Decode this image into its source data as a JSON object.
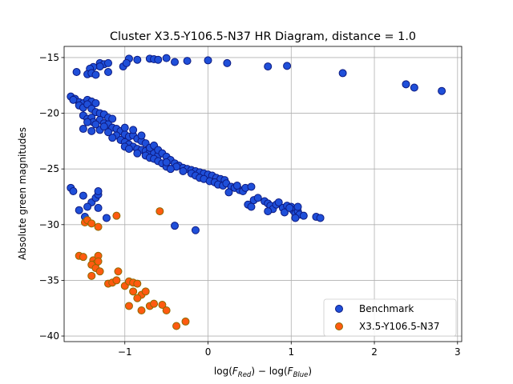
{
  "chart_data": {
    "type": "scatter",
    "title": "Cluster X3.5-Y106.5-N37 HR Diagram, distance = 1.0",
    "xlabel": "log(F_Red) − log(F_Blue)",
    "xlabel_main": "log(",
    "xlabel_sub1": "Red",
    "xlabel_mid": ") − log(",
    "xlabel_sub2": "Blue",
    "xlabel_end": ")",
    "ylabel": "Absolute green magnitudes",
    "xlim": [
      -1.73,
      3.05
    ],
    "ylim": [
      -40.5,
      -14.0
    ],
    "xticks": [
      -1,
      0,
      1,
      2,
      3
    ],
    "xtick_labels": [
      "−1",
      "0",
      "1",
      "2",
      "3"
    ],
    "yticks": [
      -15,
      -20,
      -25,
      -30,
      -35,
      -40
    ],
    "ytick_labels": [
      "−15",
      "−20",
      "−25",
      "−30",
      "−35",
      "−40"
    ],
    "grid": true,
    "legend_position": "lower-right",
    "series": [
      {
        "name": "Benchmark",
        "color": "#1f4fd9",
        "edge": "#0d1a80",
        "points": [
          [
            -0.95,
            -15.1
          ],
          [
            -0.85,
            -15.2
          ],
          [
            -0.7,
            -15.1
          ],
          [
            -0.65,
            -15.15
          ],
          [
            -0.6,
            -15.2
          ],
          [
            -0.5,
            -15.05
          ],
          [
            -0.4,
            -15.4
          ],
          [
            -0.25,
            -15.3
          ],
          [
            0.0,
            -15.25
          ],
          [
            0.23,
            -15.5
          ],
          [
            0.72,
            -15.8
          ],
          [
            0.95,
            -15.75
          ],
          [
            1.62,
            -16.4
          ],
          [
            2.38,
            -17.4
          ],
          [
            2.48,
            -17.7
          ],
          [
            2.81,
            -18.0
          ],
          [
            -1.02,
            -15.8
          ],
          [
            -0.98,
            -15.5
          ],
          [
            -1.3,
            -15.5
          ],
          [
            -1.25,
            -15.6
          ],
          [
            -1.2,
            -15.5
          ],
          [
            -1.2,
            -16.3
          ],
          [
            -1.3,
            -15.8
          ],
          [
            -1.38,
            -15.85
          ],
          [
            -1.42,
            -16.0
          ],
          [
            -1.45,
            -16.5
          ],
          [
            -1.4,
            -16.4
          ],
          [
            -1.35,
            -16.55
          ],
          [
            -1.58,
            -16.3
          ],
          [
            -1.65,
            -18.5
          ],
          [
            -1.6,
            -18.7
          ],
          [
            -1.55,
            -19.0
          ],
          [
            -1.5,
            -19.1
          ],
          [
            -1.45,
            -18.8
          ],
          [
            -1.4,
            -18.95
          ],
          [
            -1.35,
            -19.1
          ],
          [
            -1.62,
            -18.8
          ],
          [
            -1.55,
            -19.3
          ],
          [
            -1.5,
            -19.5
          ],
          [
            -1.45,
            -19.2
          ],
          [
            -1.4,
            -19.6
          ],
          [
            -1.35,
            -19.9
          ],
          [
            -1.3,
            -20.0
          ],
          [
            -1.25,
            -20.1
          ],
          [
            -1.5,
            -20.2
          ],
          [
            -1.45,
            -20.5
          ],
          [
            -1.4,
            -20.4
          ],
          [
            -1.38,
            -20.8
          ],
          [
            -1.3,
            -20.6
          ],
          [
            -1.2,
            -20.4
          ],
          [
            -1.15,
            -20.5
          ],
          [
            -1.25,
            -20.9
          ],
          [
            -1.2,
            -21.0
          ],
          [
            -1.15,
            -21.3
          ],
          [
            -1.1,
            -21.4
          ],
          [
            -1.05,
            -21.6
          ],
          [
            -1.5,
            -21.4
          ],
          [
            -1.4,
            -21.6
          ],
          [
            -1.3,
            -21.5
          ],
          [
            -1.25,
            -21.2
          ],
          [
            -1.0,
            -21.9
          ],
          [
            -0.95,
            -22.1
          ],
          [
            -0.9,
            -22.0
          ],
          [
            -0.85,
            -22.3
          ],
          [
            -0.8,
            -22.5
          ],
          [
            -0.75,
            -22.7
          ],
          [
            -1.1,
            -22.0
          ],
          [
            -1.05,
            -22.4
          ],
          [
            -1.0,
            -22.6
          ],
          [
            -0.95,
            -22.8
          ],
          [
            -0.9,
            -23.0
          ],
          [
            -0.85,
            -23.2
          ],
          [
            -0.8,
            -23.3
          ],
          [
            -0.75,
            -23.4
          ],
          [
            -0.7,
            -23.5
          ],
          [
            -0.65,
            -23.6
          ],
          [
            -0.6,
            -23.8
          ],
          [
            -1.0,
            -23.0
          ],
          [
            -0.95,
            -23.2
          ],
          [
            -0.85,
            -23.6
          ],
          [
            -0.75,
            -23.8
          ],
          [
            -0.7,
            -24.0
          ],
          [
            -0.65,
            -24.1
          ],
          [
            -0.6,
            -24.3
          ],
          [
            -0.55,
            -24.5
          ],
          [
            -0.5,
            -24.8
          ],
          [
            -0.7,
            -23.1
          ],
          [
            -0.65,
            -22.9
          ],
          [
            -0.6,
            -23.3
          ],
          [
            -0.55,
            -23.6
          ],
          [
            -0.5,
            -23.9
          ],
          [
            -0.45,
            -24.2
          ],
          [
            -0.4,
            -24.5
          ],
          [
            -0.35,
            -24.7
          ],
          [
            -0.3,
            -24.9
          ],
          [
            -0.25,
            -25.0
          ],
          [
            -0.2,
            -25.1
          ],
          [
            -0.15,
            -25.2
          ],
          [
            -0.1,
            -25.3
          ],
          [
            -0.05,
            -25.4
          ],
          [
            0.0,
            -25.5
          ],
          [
            0.05,
            -25.6
          ],
          [
            0.1,
            -25.8
          ],
          [
            0.15,
            -25.9
          ],
          [
            0.2,
            -26.0
          ],
          [
            -0.38,
            -24.8
          ],
          [
            -0.3,
            -25.2
          ],
          [
            -0.2,
            -25.4
          ],
          [
            -0.15,
            -25.6
          ],
          [
            -0.1,
            -25.8
          ],
          [
            -0.05,
            -25.9
          ],
          [
            0.02,
            -26.1
          ],
          [
            0.08,
            -26.2
          ],
          [
            0.12,
            -26.4
          ],
          [
            0.18,
            -26.5
          ],
          [
            0.22,
            -26.3
          ],
          [
            0.28,
            -26.6
          ],
          [
            0.32,
            -26.7
          ],
          [
            0.38,
            -26.9
          ],
          [
            0.42,
            -27.0
          ],
          [
            0.25,
            -27.1
          ],
          [
            0.35,
            -26.5
          ],
          [
            0.45,
            -26.7
          ],
          [
            0.52,
            -26.6
          ],
          [
            0.48,
            -28.2
          ],
          [
            0.52,
            -28.4
          ],
          [
            0.55,
            -27.8
          ],
          [
            0.6,
            -27.6
          ],
          [
            0.68,
            -27.9
          ],
          [
            0.72,
            -28.1
          ],
          [
            0.75,
            -28.3
          ],
          [
            0.78,
            -28.6
          ],
          [
            0.72,
            -28.8
          ],
          [
            0.82,
            -28.2
          ],
          [
            0.85,
            -28.0
          ],
          [
            0.9,
            -28.5
          ],
          [
            0.92,
            -28.9
          ],
          [
            0.95,
            -28.3
          ],
          [
            1.0,
            -28.4
          ],
          [
            1.02,
            -28.7
          ],
          [
            1.05,
            -29.0
          ],
          [
            1.08,
            -28.8
          ],
          [
            1.1,
            -29.1
          ],
          [
            1.15,
            -29.2
          ],
          [
            1.05,
            -29.4
          ],
          [
            1.3,
            -29.3
          ],
          [
            1.35,
            -29.4
          ],
          [
            1.08,
            -28.4
          ],
          [
            0.98,
            -28.5
          ],
          [
            -0.45,
            -25.0
          ],
          [
            -0.5,
            -24.4
          ],
          [
            -0.8,
            -22.0
          ],
          [
            -0.9,
            -21.5
          ],
          [
            -1.0,
            -21.3
          ],
          [
            -1.15,
            -22.2
          ],
          [
            -1.2,
            -21.7
          ],
          [
            -1.35,
            -21.0
          ],
          [
            -1.45,
            -20.8
          ],
          [
            -1.65,
            -26.7
          ],
          [
            -1.62,
            -27.0
          ],
          [
            -1.5,
            -27.4
          ],
          [
            -1.4,
            -28.0
          ],
          [
            -1.35,
            -27.6
          ],
          [
            -1.32,
            -28.5
          ],
          [
            -1.45,
            -28.4
          ],
          [
            -1.55,
            -28.7
          ],
          [
            -1.48,
            -29.3
          ],
          [
            -1.22,
            -29.4
          ],
          [
            -1.32,
            -27.3
          ],
          [
            -1.32,
            -27.0
          ],
          [
            -0.4,
            -30.1
          ],
          [
            -0.15,
            -30.5
          ]
        ]
      },
      {
        "name": "X3.5-Y106.5-N37",
        "color": "#ff5a10",
        "edge": "#8c6a00",
        "points": [
          [
            -1.48,
            -29.8
          ],
          [
            -1.45,
            -29.6
          ],
          [
            -1.4,
            -29.9
          ],
          [
            -1.32,
            -30.2
          ],
          [
            -1.1,
            -29.2
          ],
          [
            -0.58,
            -28.8
          ],
          [
            -1.55,
            -32.8
          ],
          [
            -1.5,
            -32.9
          ],
          [
            -1.38,
            -33.2
          ],
          [
            -1.35,
            -33.5
          ],
          [
            -1.4,
            -33.6
          ],
          [
            -1.35,
            -33.9
          ],
          [
            -1.32,
            -32.8
          ],
          [
            -1.32,
            -33.3
          ],
          [
            -1.3,
            -34.2
          ],
          [
            -1.4,
            -34.6
          ],
          [
            -1.2,
            -35.3
          ],
          [
            -1.15,
            -35.2
          ],
          [
            -1.1,
            -35.0
          ],
          [
            -1.08,
            -34.2
          ],
          [
            -1.0,
            -35.5
          ],
          [
            -0.95,
            -35.1
          ],
          [
            -0.9,
            -35.2
          ],
          [
            -0.85,
            -35.3
          ],
          [
            -0.9,
            -36.0
          ],
          [
            -0.8,
            -36.3
          ],
          [
            -0.75,
            -36.0
          ],
          [
            -0.85,
            -36.6
          ],
          [
            -0.95,
            -37.3
          ],
          [
            -0.8,
            -37.7
          ],
          [
            -0.7,
            -37.3
          ],
          [
            -0.65,
            -37.1
          ],
          [
            -0.55,
            -37.2
          ],
          [
            -0.5,
            -37.7
          ],
          [
            -0.38,
            -39.1
          ],
          [
            -0.27,
            -38.7
          ]
        ]
      }
    ]
  }
}
